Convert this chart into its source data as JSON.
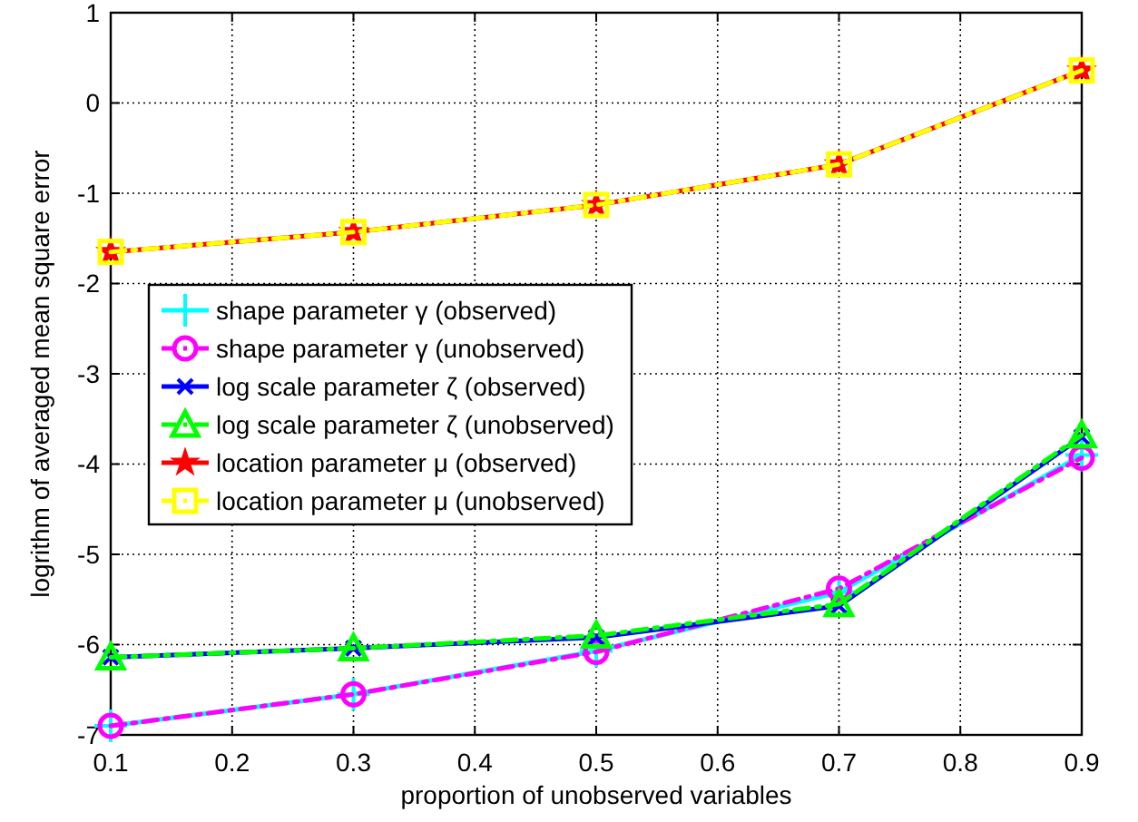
{
  "chart_data": {
    "type": "line",
    "xlabel": "proportion of unobserved variables",
    "ylabel": "logrithm of averaged mean square error",
    "x": [
      0.1,
      0.3,
      0.5,
      0.7,
      0.9
    ],
    "xlim": [
      0.1,
      0.9
    ],
    "xticks": [
      0.1,
      0.2,
      0.3,
      0.4,
      0.5,
      0.6,
      0.7,
      0.8,
      0.9
    ],
    "ylim": [
      -7,
      1
    ],
    "yticks": [
      -7,
      -6,
      -5,
      -4,
      -3,
      -2,
      -1,
      0,
      1
    ],
    "grid": true,
    "legend": "left",
    "series": [
      {
        "name": "shape parameter γ (observed)",
        "color": "#00ffff",
        "values": [
          -6.9,
          -6.55,
          -6.07,
          -5.42,
          -3.9
        ],
        "marker": "cross",
        "line_style": "solid"
      },
      {
        "name": "shape parameter γ (unobserved)",
        "color": "#ff00ff",
        "values": [
          -6.9,
          -6.55,
          -6.08,
          -5.38,
          -3.93
        ],
        "marker": "circle",
        "line_style": "dashed"
      },
      {
        "name": "log scale parameter ζ (observed)",
        "color": "#0000ff",
        "values": [
          -6.14,
          -6.04,
          -5.92,
          -5.57,
          -3.7
        ],
        "marker": "x",
        "line_style": "solid"
      },
      {
        "name": "log scale parameter ζ (unobserved)",
        "color": "#00ff00",
        "values": [
          -6.14,
          -6.04,
          -5.9,
          -5.55,
          -3.68
        ],
        "marker": "triangle",
        "line_style": "dashed"
      },
      {
        "name": "location parameter μ (observed)",
        "color": "#ff0000",
        "values": [
          -1.65,
          -1.43,
          -1.13,
          -0.68,
          0.36
        ],
        "marker": "star",
        "line_style": "solid"
      },
      {
        "name": "location parameter μ (unobserved)",
        "color": "#ffff00",
        "values": [
          -1.65,
          -1.43,
          -1.13,
          -0.68,
          0.36
        ],
        "marker": "square",
        "line_style": "dashed"
      }
    ]
  }
}
